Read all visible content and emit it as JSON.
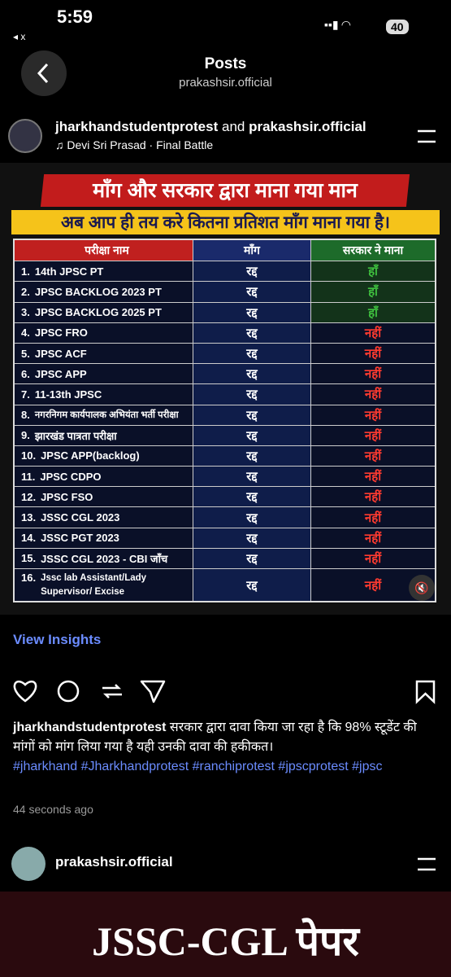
{
  "status": {
    "time": "5:59",
    "back": "x",
    "battery": "40"
  },
  "header": {
    "title": "Posts",
    "subtitle": "prakashsir.official"
  },
  "post": {
    "user1": "jharkhandstudentprotest",
    "joiner": "and",
    "user2": "prakashsir.official",
    "music": "Devi Sri Prasad · Final Battle",
    "image": {
      "heading1": "माँग और सरकार द्वारा माना गया मान",
      "heading2": "अब आप ही तय करे कितना प्रतिशत माँग माना गया है।",
      "table": {
        "headers": [
          "परीक्षा नाम",
          "माँग",
          "सरकार ने माना"
        ],
        "rows": [
          [
            "1.",
            "14th JPSC PT",
            "रद्द",
            "हाँ"
          ],
          [
            "2.",
            "JPSC BACKLOG 2023 PT",
            "रद्द",
            "हाँ"
          ],
          [
            "3.",
            "JPSC BACKLOG 2025 PT",
            "रद्द",
            "हाँ"
          ],
          [
            "4.",
            "JPSC FRO",
            "रद्द",
            "नहीं"
          ],
          [
            "5.",
            "JPSC ACF",
            "रद्द",
            "नहीं"
          ],
          [
            "6.",
            "JPSC APP",
            "रद्द",
            "नहीं"
          ],
          [
            "7.",
            "11-13th JPSC",
            "रद्द",
            "नहीं"
          ],
          [
            "8.",
            "नगरनिगम कार्यपालक अभियंता भर्ती परीक्षा",
            "रद्द",
            "नहीं"
          ],
          [
            "9.",
            "झारखंड पात्रता परीक्षा",
            "रद्द",
            "नहीं"
          ],
          [
            "10.",
            "JPSC APP(backlog)",
            "रद्द",
            "नहीं"
          ],
          [
            "11.",
            "JPSC CDPO",
            "रद्द",
            "नहीं"
          ],
          [
            "12.",
            "JPSC FSO",
            "रद्द",
            "नहीं"
          ],
          [
            "13.",
            "JSSC CGL 2023",
            "रद्द",
            "नहीं"
          ],
          [
            "14.",
            "JSSC PGT 2023",
            "रद्द",
            "नहीं"
          ],
          [
            "15.",
            "JSSC CGL 2023 - CBI जाँच",
            "रद्द",
            "नहीं"
          ],
          [
            "16.",
            "Jssc lab Assistant/Lady Supervisor/ Excise Constable/Field Worker etc",
            "रद्द",
            "नहीं"
          ]
        ]
      }
    },
    "insights": "View Insights",
    "caption": {
      "username": "jharkhandstudentprotest",
      "text": "सरकार द्वारा दावा किया जा रहा है कि 98% स्टूडेंट की मांगों को मांग लिया गया है यही उनकी दावा की हकीकत।",
      "hashtags": "#jharkhand #Jharkhandprotest #ranchiprotest  #jpscprotest #jpsc",
      "time": "44 seconds ago"
    }
  },
  "next_post": {
    "username": "prakashsir.official",
    "image_text": "JSSC-CGL पेपर"
  }
}
